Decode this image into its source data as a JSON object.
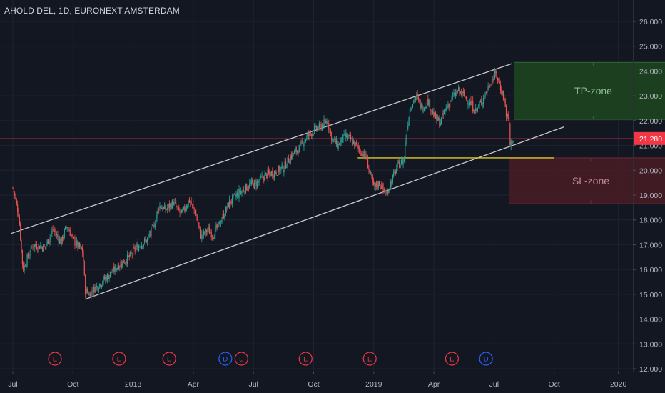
{
  "chart_data": {
    "type": "candlestick",
    "title": "AHOLD DEL, 1D, EURONEXT AMSTERDAM",
    "y_axis": {
      "min": 12,
      "max": 26.5,
      "ticks": [
        "12.000",
        "13.000",
        "14.000",
        "15.000",
        "16.000",
        "17.000",
        "18.000",
        "19.000",
        "20.000",
        "21.000",
        "22.000",
        "23.000",
        "24.000",
        "25.000",
        "26.000"
      ],
      "current_price_label": "21.280",
      "current_price": 21.28
    },
    "x_axis": {
      "ticks": [
        "Jul",
        "Oct",
        "2018",
        "Apr",
        "Jul",
        "Oct",
        "2019",
        "Apr",
        "Jul",
        "Oct",
        "2020"
      ]
    },
    "price_path": [
      {
        "t": 0.0,
        "p": 19.3
      },
      {
        "t": 0.3,
        "p": 18.2
      },
      {
        "t": 0.5,
        "p": 16.0
      },
      {
        "t": 1.0,
        "p": 17.0
      },
      {
        "t": 1.6,
        "p": 16.9
      },
      {
        "t": 2.0,
        "p": 17.6
      },
      {
        "t": 2.4,
        "p": 17.1
      },
      {
        "t": 2.7,
        "p": 17.8
      },
      {
        "t": 3.0,
        "p": 17.2
      },
      {
        "t": 3.5,
        "p": 16.7
      },
      {
        "t": 3.6,
        "p": 15.2
      },
      {
        "t": 3.8,
        "p": 15.0
      },
      {
        "t": 4.3,
        "p": 15.4
      },
      {
        "t": 4.8,
        "p": 15.8
      },
      {
        "t": 5.3,
        "p": 16.2
      },
      {
        "t": 5.8,
        "p": 16.5
      },
      {
        "t": 6.2,
        "p": 16.9
      },
      {
        "t": 6.7,
        "p": 17.2
      },
      {
        "t": 7.0,
        "p": 17.7
      },
      {
        "t": 7.3,
        "p": 18.6
      },
      {
        "t": 7.6,
        "p": 18.4
      },
      {
        "t": 8.0,
        "p": 18.7
      },
      {
        "t": 8.4,
        "p": 18.2
      },
      {
        "t": 8.8,
        "p": 18.8
      },
      {
        "t": 9.1,
        "p": 18.3
      },
      {
        "t": 9.4,
        "p": 17.3
      },
      {
        "t": 9.7,
        "p": 17.6
      },
      {
        "t": 10.0,
        "p": 17.4
      },
      {
        "t": 10.4,
        "p": 18.0
      },
      {
        "t": 10.8,
        "p": 18.7
      },
      {
        "t": 11.3,
        "p": 19.1
      },
      {
        "t": 11.8,
        "p": 19.4
      },
      {
        "t": 12.2,
        "p": 19.5
      },
      {
        "t": 12.6,
        "p": 19.8
      },
      {
        "t": 13.0,
        "p": 19.9
      },
      {
        "t": 13.5,
        "p": 20.1
      },
      {
        "t": 13.9,
        "p": 20.6
      },
      {
        "t": 14.3,
        "p": 20.9
      },
      {
        "t": 14.6,
        "p": 21.3
      },
      {
        "t": 15.0,
        "p": 21.6
      },
      {
        "t": 15.4,
        "p": 21.8
      },
      {
        "t": 15.7,
        "p": 22.0
      },
      {
        "t": 15.9,
        "p": 21.3
      },
      {
        "t": 16.2,
        "p": 21.0
      },
      {
        "t": 16.6,
        "p": 21.4
      },
      {
        "t": 17.0,
        "p": 21.1
      },
      {
        "t": 17.4,
        "p": 20.7
      },
      {
        "t": 17.6,
        "p": 20.6
      },
      {
        "t": 17.8,
        "p": 19.9
      },
      {
        "t": 18.0,
        "p": 19.3
      },
      {
        "t": 18.3,
        "p": 19.5
      },
      {
        "t": 18.6,
        "p": 19.0
      },
      {
        "t": 18.9,
        "p": 19.6
      },
      {
        "t": 19.2,
        "p": 20.2
      },
      {
        "t": 19.5,
        "p": 20.4
      },
      {
        "t": 19.6,
        "p": 21.3
      },
      {
        "t": 19.8,
        "p": 22.5
      },
      {
        "t": 20.1,
        "p": 23.0
      },
      {
        "t": 20.4,
        "p": 22.5
      },
      {
        "t": 20.7,
        "p": 22.8
      },
      {
        "t": 21.0,
        "p": 22.2
      },
      {
        "t": 21.3,
        "p": 21.9
      },
      {
        "t": 21.6,
        "p": 22.5
      },
      {
        "t": 21.9,
        "p": 22.9
      },
      {
        "t": 22.2,
        "p": 23.2
      },
      {
        "t": 22.5,
        "p": 23.0
      },
      {
        "t": 22.8,
        "p": 22.7
      },
      {
        "t": 23.1,
        "p": 22.4
      },
      {
        "t": 23.4,
        "p": 22.8
      },
      {
        "t": 23.8,
        "p": 23.5
      },
      {
        "t": 24.1,
        "p": 23.9
      },
      {
        "t": 24.3,
        "p": 23.4
      },
      {
        "t": 24.5,
        "p": 22.9
      },
      {
        "t": 24.6,
        "p": 22.3
      },
      {
        "t": 24.75,
        "p": 21.9
      },
      {
        "t": 24.8,
        "p": 21.0
      },
      {
        "t": 24.95,
        "p": 21.3
      }
    ],
    "channel": {
      "upper": [
        {
          "t": -0.1,
          "p": 17.45
        },
        {
          "t": 24.9,
          "p": 24.3
        }
      ],
      "lower": [
        {
          "t": 3.6,
          "p": 14.8
        },
        {
          "t": 27.5,
          "p": 21.75
        }
      ]
    },
    "horizontal_line": {
      "t_start": 17.2,
      "t_end": 27.0,
      "p": 20.5,
      "color": "#e0c82e"
    },
    "price_line_color": "#f23645",
    "zones": [
      {
        "label": "TP-zone",
        "t_start": 25.0,
        "t_end": 32.9,
        "p_low": 22.05,
        "p_high": 24.35,
        "fill": "#1e4620",
        "stroke": "#2e6b32",
        "text_color": "#8fbf90"
      },
      {
        "label": "SL-zone",
        "t_start": 24.75,
        "t_end": 32.9,
        "p_low": 18.65,
        "p_high": 20.5,
        "fill": "#4a1c24",
        "stroke": "#6d2a33",
        "text_color": "#c48a92"
      }
    ],
    "events": [
      {
        "label": "E",
        "t": 2.1,
        "type": "earnings"
      },
      {
        "label": "E",
        "t": 5.3,
        "type": "earnings"
      },
      {
        "label": "E",
        "t": 7.8,
        "type": "earnings"
      },
      {
        "label": "D",
        "t": 10.6,
        "type": "dividend"
      },
      {
        "label": "E",
        "t": 11.4,
        "type": "earnings"
      },
      {
        "label": "E",
        "t": 14.6,
        "type": "earnings"
      },
      {
        "label": "E",
        "t": 17.8,
        "type": "earnings"
      },
      {
        "label": "E",
        "t": 21.9,
        "type": "earnings"
      },
      {
        "label": "D",
        "t": 23.6,
        "type": "dividend"
      }
    ],
    "grid": true,
    "colors": {
      "background": "#131722",
      "up": "#26a69a",
      "down": "#ef5350",
      "grid": "#1f2331",
      "channel": "#c8c9cc"
    }
  }
}
